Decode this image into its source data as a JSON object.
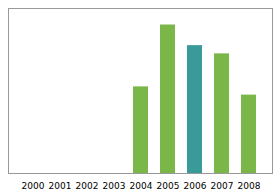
{
  "chart_data": {
    "type": "bar",
    "categories": [
      "2000",
      "2001",
      "2002",
      "2003",
      "2004",
      "2005",
      "2006",
      "2007",
      "2008"
    ],
    "values": [
      0,
      0,
      0,
      0,
      42,
      72,
      62,
      58,
      38
    ],
    "colors": [
      "#7ab648",
      "#7ab648",
      "#7ab648",
      "#7ab648",
      "#7ab648",
      "#7ab648",
      "#3a9a9a",
      "#7ab648",
      "#7ab648"
    ],
    "ylim": [
      0,
      80
    ],
    "grid": false,
    "tick_labels": "x"
  }
}
